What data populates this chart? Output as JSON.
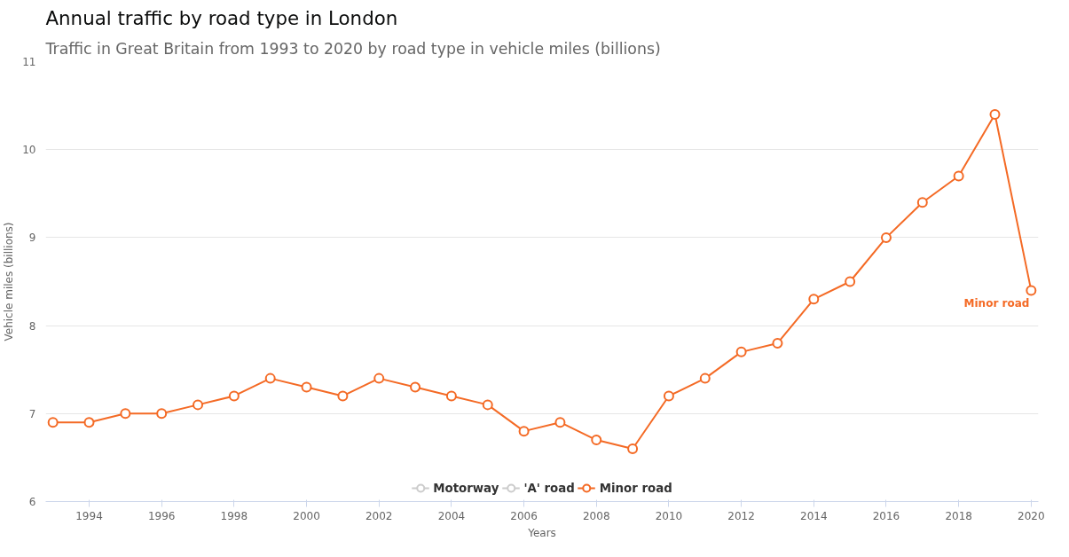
{
  "chart_data": {
    "type": "line",
    "title": "Annual traffic by road type in London",
    "subtitle": "Traffic in Great Britain from 1993 to 2020 by road type in vehicle miles (billions)",
    "xlabel": "Years",
    "ylabel": "Vehicle miles (billions)",
    "x": [
      1993,
      1994,
      1995,
      1996,
      1997,
      1998,
      1999,
      2000,
      2001,
      2002,
      2003,
      2004,
      2005,
      2006,
      2007,
      2008,
      2009,
      2010,
      2011,
      2012,
      2013,
      2014,
      2015,
      2016,
      2017,
      2018,
      2019,
      2020
    ],
    "series": [
      {
        "name": "Motorway",
        "color": "#cccccc",
        "values": [
          null,
          null,
          null,
          null,
          null,
          null,
          null,
          null,
          null,
          null,
          null,
          null,
          null,
          null,
          null,
          null,
          null,
          null,
          null,
          null,
          null,
          null,
          null,
          null,
          null,
          null,
          null,
          null
        ]
      },
      {
        "name": "'A' road",
        "color": "#cccccc",
        "values": [
          null,
          null,
          null,
          null,
          null,
          null,
          null,
          null,
          null,
          null,
          null,
          null,
          null,
          null,
          null,
          null,
          null,
          null,
          null,
          null,
          null,
          null,
          null,
          null,
          null,
          null,
          null,
          null
        ]
      },
      {
        "name": "Minor road",
        "color": "#f46a25",
        "values": [
          6.9,
          6.9,
          7.0,
          7.0,
          7.1,
          7.2,
          7.4,
          7.3,
          7.2,
          7.4,
          7.3,
          7.2,
          7.1,
          6.8,
          6.9,
          6.7,
          6.6,
          7.2,
          7.4,
          7.7,
          7.8,
          8.3,
          8.5,
          9.0,
          9.4,
          9.7,
          10.4,
          8.4
        ]
      }
    ],
    "xlim": [
      1992.8,
      2020.2
    ],
    "xticks": [
      1994,
      1996,
      1998,
      2000,
      2002,
      2004,
      2006,
      2008,
      2010,
      2012,
      2014,
      2016,
      2018,
      2020
    ],
    "ylim": [
      6,
      11
    ],
    "yticks": [
      6,
      7,
      8,
      9,
      10,
      11
    ],
    "grid": "y",
    "legend": "bottom",
    "marker": "circle",
    "line_style": "solid"
  }
}
